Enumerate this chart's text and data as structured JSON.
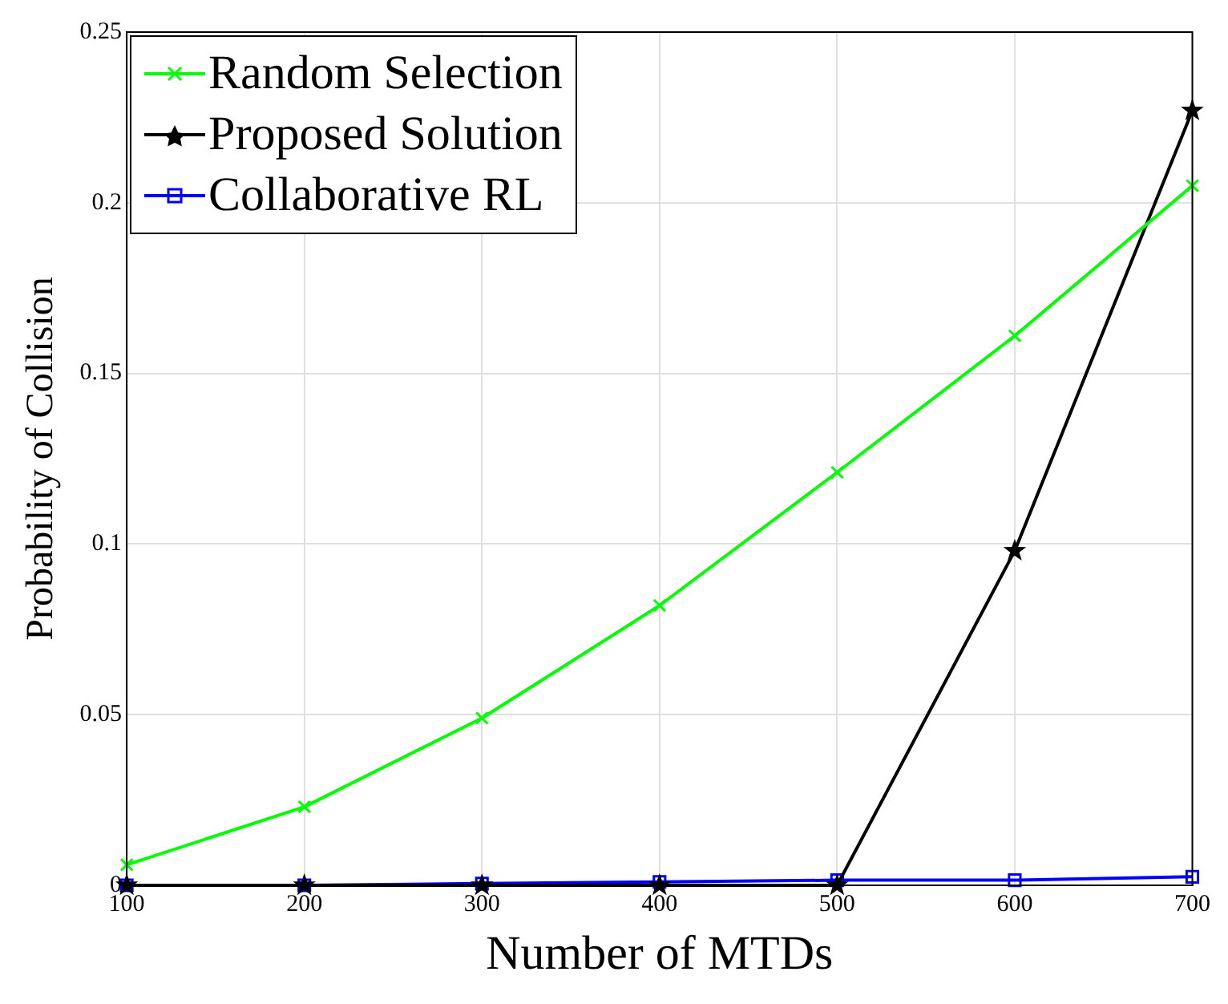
{
  "chart_data": {
    "type": "line",
    "xlabel": "Number of MTDs",
    "ylabel": "Probability of Collision",
    "x": [
      100,
      200,
      300,
      400,
      500,
      600,
      700
    ],
    "series": [
      {
        "name": "Random Selection",
        "color": "#00ff00",
        "marker": "cross",
        "values": [
          0.006,
          0.023,
          0.049,
          0.082,
          0.121,
          0.161,
          0.205
        ]
      },
      {
        "name": "Proposed Solution",
        "color": "#000000",
        "marker": "star",
        "values": [
          0,
          0,
          0,
          0,
          0,
          0.098,
          0.227
        ]
      },
      {
        "name": "Collaborative RL",
        "color": "#0000ff",
        "marker": "square",
        "values": [
          0,
          0,
          0.0005,
          0.001,
          0.0015,
          0.0015,
          0.0025
        ]
      }
    ],
    "xlim": [
      100,
      700
    ],
    "xticks": [
      100,
      200,
      300,
      400,
      500,
      600,
      700
    ],
    "ylim": [
      0,
      0.25
    ],
    "yticks": [
      0,
      0.05,
      0.1,
      0.15,
      0.2,
      0.25
    ],
    "grid": true,
    "legend": "top left",
    "line_style": "solid"
  }
}
